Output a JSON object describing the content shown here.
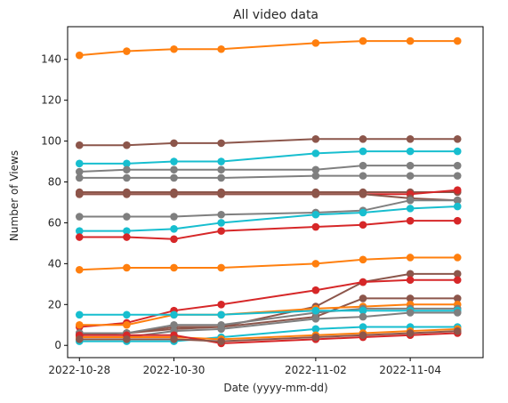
{
  "chart_data": {
    "type": "line",
    "title": "All video data",
    "xlabel": "Date (yyyy-mm-dd)",
    "ylabel": "Number of Views",
    "x_type": "date",
    "xlim": [
      "2022-10-27T18:00",
      "2022-11-05T13:00"
    ],
    "ylim": [
      -6,
      156
    ],
    "x_ticks": [
      "2022-10-28",
      "2022-10-30",
      "2022-11-02",
      "2022-11-04"
    ],
    "y_ticks": [
      0,
      20,
      40,
      60,
      80,
      100,
      120,
      140
    ],
    "grid": false,
    "legend": "none",
    "x": [
      "2022-10-28T00:00",
      "2022-10-29T00:00",
      "2022-10-30T00:00",
      "2022-10-31T00:00",
      "2022-11-02T00:00",
      "2022-11-03T00:00",
      "2022-11-04T00:00",
      "2022-11-05T00:00"
    ],
    "series": [
      {
        "color": "#ff7f0e",
        "values": [
          142,
          144,
          145,
          145,
          148,
          149,
          149,
          149
        ]
      },
      {
        "color": "#8c564b",
        "values": [
          98,
          98,
          99,
          99,
          101,
          101,
          101,
          101
        ]
      },
      {
        "color": "#17becf",
        "values": [
          89,
          89,
          90,
          90,
          94,
          95,
          95,
          95
        ]
      },
      {
        "color": "#7f7f7f",
        "values": [
          85,
          86,
          86,
          86,
          86,
          88,
          88,
          88
        ]
      },
      {
        "color": "#7f7f7f",
        "values": [
          82,
          82,
          82,
          82,
          83,
          83,
          83,
          83
        ]
      },
      {
        "color": "#8c564b",
        "values": [
          75,
          75,
          75,
          75,
          75,
          75,
          75,
          75
        ]
      },
      {
        "color": "#d62728",
        "values": [
          74,
          74,
          74,
          74,
          74,
          74,
          74,
          76
        ]
      },
      {
        "color": "#8c564b",
        "values": [
          74,
          74,
          74,
          74,
          74,
          74,
          72,
          71
        ]
      },
      {
        "color": "#7f7f7f",
        "values": [
          63,
          63,
          63,
          64,
          65,
          66,
          71,
          71
        ]
      },
      {
        "color": "#17becf",
        "values": [
          56,
          56,
          57,
          60,
          64,
          65,
          67,
          68
        ]
      },
      {
        "color": "#d62728",
        "values": [
          53,
          53,
          52,
          56,
          58,
          59,
          61,
          61
        ]
      },
      {
        "color": "#ff7f0e",
        "values": [
          37,
          38,
          38,
          38,
          40,
          42,
          43,
          43
        ]
      },
      {
        "color": "#8c564b",
        "values": [
          5,
          6,
          8,
          9,
          19,
          31,
          35,
          35
        ]
      },
      {
        "color": "#d62728",
        "values": [
          9,
          11,
          17,
          20,
          27,
          31,
          32,
          32
        ]
      },
      {
        "color": "#8c564b",
        "values": [
          6,
          6,
          9,
          9,
          14,
          23,
          23,
          23
        ]
      },
      {
        "color": "#ff7f0e",
        "values": [
          10,
          10,
          15,
          15,
          18,
          19,
          20,
          20
        ]
      },
      {
        "color": "#7f7f7f",
        "values": [
          6,
          6,
          10,
          10,
          16,
          18,
          18,
          18
        ]
      },
      {
        "color": "#17becf",
        "values": [
          15,
          15,
          15,
          15,
          17,
          17,
          17,
          17
        ]
      },
      {
        "color": "#7f7f7f",
        "values": [
          4,
          4,
          7,
          8,
          13,
          14,
          16,
          16
        ]
      },
      {
        "color": "#17becf",
        "values": [
          2,
          2,
          2,
          4,
          8,
          9,
          9,
          9
        ]
      },
      {
        "color": "#ff7f0e",
        "values": [
          4,
          4,
          4,
          3,
          5,
          6,
          7,
          8
        ]
      },
      {
        "color": "#d62728",
        "values": [
          5,
          5,
          5,
          1,
          3,
          4,
          5,
          6
        ]
      },
      {
        "color": "#8c564b",
        "values": [
          3,
          3,
          3,
          2,
          4,
          5,
          6,
          7
        ]
      }
    ]
  }
}
